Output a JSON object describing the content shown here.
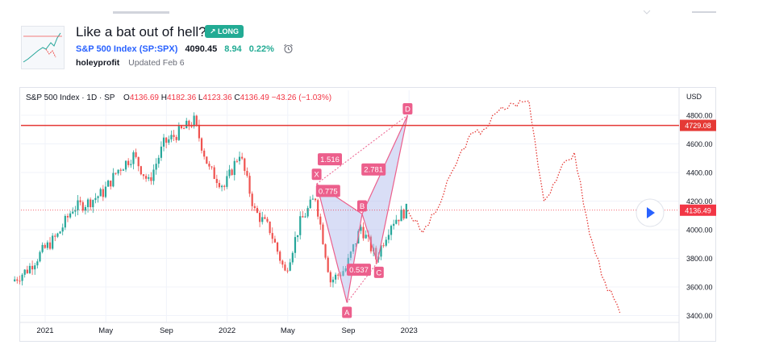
{
  "idea": {
    "title": "Like a bat out of hell?",
    "badge": "↗ LONG",
    "symbol_name": "S&P 500 Index",
    "symbol_code": "(SP:SPX)",
    "price": "4090.45",
    "change": "8.94",
    "change_pct": "0.22%",
    "author": "holeyprofit",
    "updated": "Updated Feb 6"
  },
  "legend": {
    "name": "S&P 500 Index · 1D · SP",
    "o_label": "O",
    "o": "4136.69",
    "h_label": "H",
    "h": "4182.36",
    "l_label": "L",
    "l": "4123.36",
    "c_label": "C",
    "c": "4136.49",
    "change": "−43.26 (−1.03%)"
  },
  "colors": {
    "up": "#26a69a",
    "down": "#ef5350",
    "pattern": "#ec5f8c",
    "pattern_fill": "#aab6ea",
    "hline": "#e53935",
    "projection": "#e53935",
    "price_tag": "#f23645",
    "accent": "#2962ff",
    "badge": "#22ab94"
  },
  "chart_data": {
    "type": "line",
    "title": "S&P 500 Index · 1D · SP",
    "unit": "USD",
    "x_ticks": [
      "2021",
      "May",
      "Sep",
      "2022",
      "May",
      "Sep",
      "2023"
    ],
    "y_ticks": [
      3400,
      3600,
      3800,
      4000,
      4200,
      4400,
      4600,
      4800
    ],
    "ylim": [
      3340,
      4900
    ],
    "series": [
      {
        "values": [
          {
            "x": "2020-12",
            "y": 3640
          },
          {
            "x": "2021-01",
            "y": 3720
          },
          {
            "x": "2021-02",
            "y": 3850
          },
          {
            "x": "2021-03",
            "y": 3960
          },
          {
            "x": "2021-04",
            "y": 4150
          },
          {
            "x": "2021-05",
            "y": 4190
          },
          {
            "x": "2021-06",
            "y": 4260
          },
          {
            "x": "2021-07",
            "y": 4420
          },
          {
            "x": "2021-08",
            "y": 4520
          },
          {
            "x": "2021-09",
            "y": 4330
          },
          {
            "x": "2021-10",
            "y": 4600
          },
          {
            "x": "2021-11",
            "y": 4680
          },
          {
            "x": "2021-12",
            "y": 4760
          },
          {
            "x": "2022-01",
            "y": 4420
          },
          {
            "x": "2022-02",
            "y": 4300
          },
          {
            "x": "2022-03",
            "y": 4540
          },
          {
            "x": "2022-04",
            "y": 4130
          },
          {
            "x": "2022-05",
            "y": 4000
          },
          {
            "x": "2022-06",
            "y": 3700
          },
          {
            "x": "2022-07",
            "y": 4050
          },
          {
            "x": "2022-08",
            "y": 4230
          },
          {
            "x": "2022-09",
            "y": 3640
          },
          {
            "x": "2022-10",
            "y": 3730
          },
          {
            "x": "2022-11",
            "y": 4020
          },
          {
            "x": "2022-12",
            "y": 3800
          },
          {
            "x": "2023-01",
            "y": 4050
          },
          {
            "x": "2023-02",
            "y": 4136
          }
        ]
      },
      {
        "values": [
          {
            "x": "2023-02",
            "y": 4136
          },
          {
            "x": "2023-03",
            "y": 3980
          },
          {
            "x": "2023-04",
            "y": 4150
          },
          {
            "x": "2023-05",
            "y": 4420
          },
          {
            "x": "2023-06",
            "y": 4640
          },
          {
            "x": "2023-07",
            "y": 4700
          },
          {
            "x": "2023-08",
            "y": 4830
          },
          {
            "x": "2023-09",
            "y": 4880
          },
          {
            "x": "2023-10",
            "y": 4900
          },
          {
            "x": "2023-11",
            "y": 4200
          },
          {
            "x": "2023-12",
            "y": 4400
          },
          {
            "x": "2024-01",
            "y": 4540
          },
          {
            "x": "2024-02",
            "y": 3970
          },
          {
            "x": "2024-03",
            "y": 3640
          },
          {
            "x": "2024-04",
            "y": 3420
          }
        ]
      }
    ],
    "horizontal_line": {
      "value": "4729.08"
    },
    "last_price": {
      "value": "4136.49"
    },
    "harmonic_pattern": {
      "points": [
        {
          "label": "X",
          "x": "2022-08",
          "y": 4320
        },
        {
          "label": "A",
          "x": "2022-10",
          "y": 3490
        },
        {
          "label": "B",
          "x": "2022-11",
          "y": 4110
        },
        {
          "label": "C",
          "x": "2022-12",
          "y": 3770
        },
        {
          "label": "D",
          "x": "2023-02",
          "y": 4800
        }
      ],
      "ratios": [
        {
          "label": "0.775"
        },
        {
          "label": "0.537"
        },
        {
          "label": "1.516"
        },
        {
          "label": "2.781"
        }
      ]
    }
  }
}
